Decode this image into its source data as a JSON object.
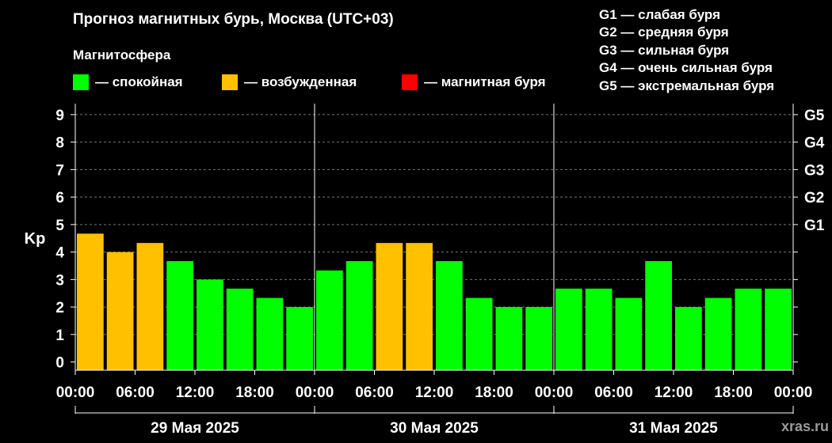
{
  "title": "Прогноз магнитных бурь, Москва (UTC+03)",
  "subtitle": "Магнитосфера",
  "legend": [
    {
      "label": "— спокойная",
      "color": "#00ff00"
    },
    {
      "label": "— возбужденная",
      "color": "#ffc000"
    },
    {
      "label": "— магнитная буря",
      "color": "#ff0000"
    }
  ],
  "storm_legend": [
    "G1 — слабая буря",
    "G2 — средняя буря",
    "G3 — сильная буря",
    "G4 — очень сильная буря",
    "G5 — экстремальная буря"
  ],
  "watermark": "xras.ru",
  "chart_data": {
    "type": "bar",
    "ylabel": "Kp",
    "ylim": [
      -0.3,
      9.4
    ],
    "y_ticks": [
      "0",
      "1",
      "2",
      "3",
      "4",
      "5",
      "6",
      "7",
      "8",
      "9"
    ],
    "right_ticks": [
      {
        "kp": 5,
        "label": "G1"
      },
      {
        "kp": 6,
        "label": "G2"
      },
      {
        "kp": 7,
        "label": "G3"
      },
      {
        "kp": 8,
        "label": "G4"
      },
      {
        "kp": 9,
        "label": "G5"
      }
    ],
    "x_tick_labels": [
      "00:00",
      "06:00",
      "12:00",
      "18:00",
      "00:00",
      "06:00",
      "12:00",
      "18:00",
      "00:00",
      "06:00",
      "12:00",
      "18:00",
      "00:00"
    ],
    "days": [
      "29 Мая 2025",
      "30 Мая 2025",
      "31 Мая 2025"
    ],
    "interval_hours": 3,
    "values": [
      4.67,
      4.0,
      4.33,
      3.67,
      3.0,
      2.67,
      2.33,
      2.0,
      3.33,
      3.67,
      4.33,
      4.33,
      3.67,
      2.33,
      2.0,
      2.0,
      2.67,
      2.67,
      2.33,
      3.67,
      2.0,
      2.33,
      2.67,
      2.67
    ],
    "status": [
      "возбужденная",
      "возбужденная",
      "возбужденная",
      "спокойная",
      "спокойная",
      "спокойная",
      "спокойная",
      "спокойная",
      "спокойная",
      "спокойная",
      "возбужденная",
      "возбужденная",
      "спокойная",
      "спокойная",
      "спокойная",
      "спокойная",
      "спокойная",
      "спокойная",
      "спокойная",
      "спокойная",
      "спокойная",
      "спокойная",
      "спокойная",
      "спокойная"
    ],
    "colors": {
      "спокойная": "#00ff00",
      "возбужденная": "#ffc000",
      "магнитная буря": "#ff0000"
    },
    "grid": true
  }
}
